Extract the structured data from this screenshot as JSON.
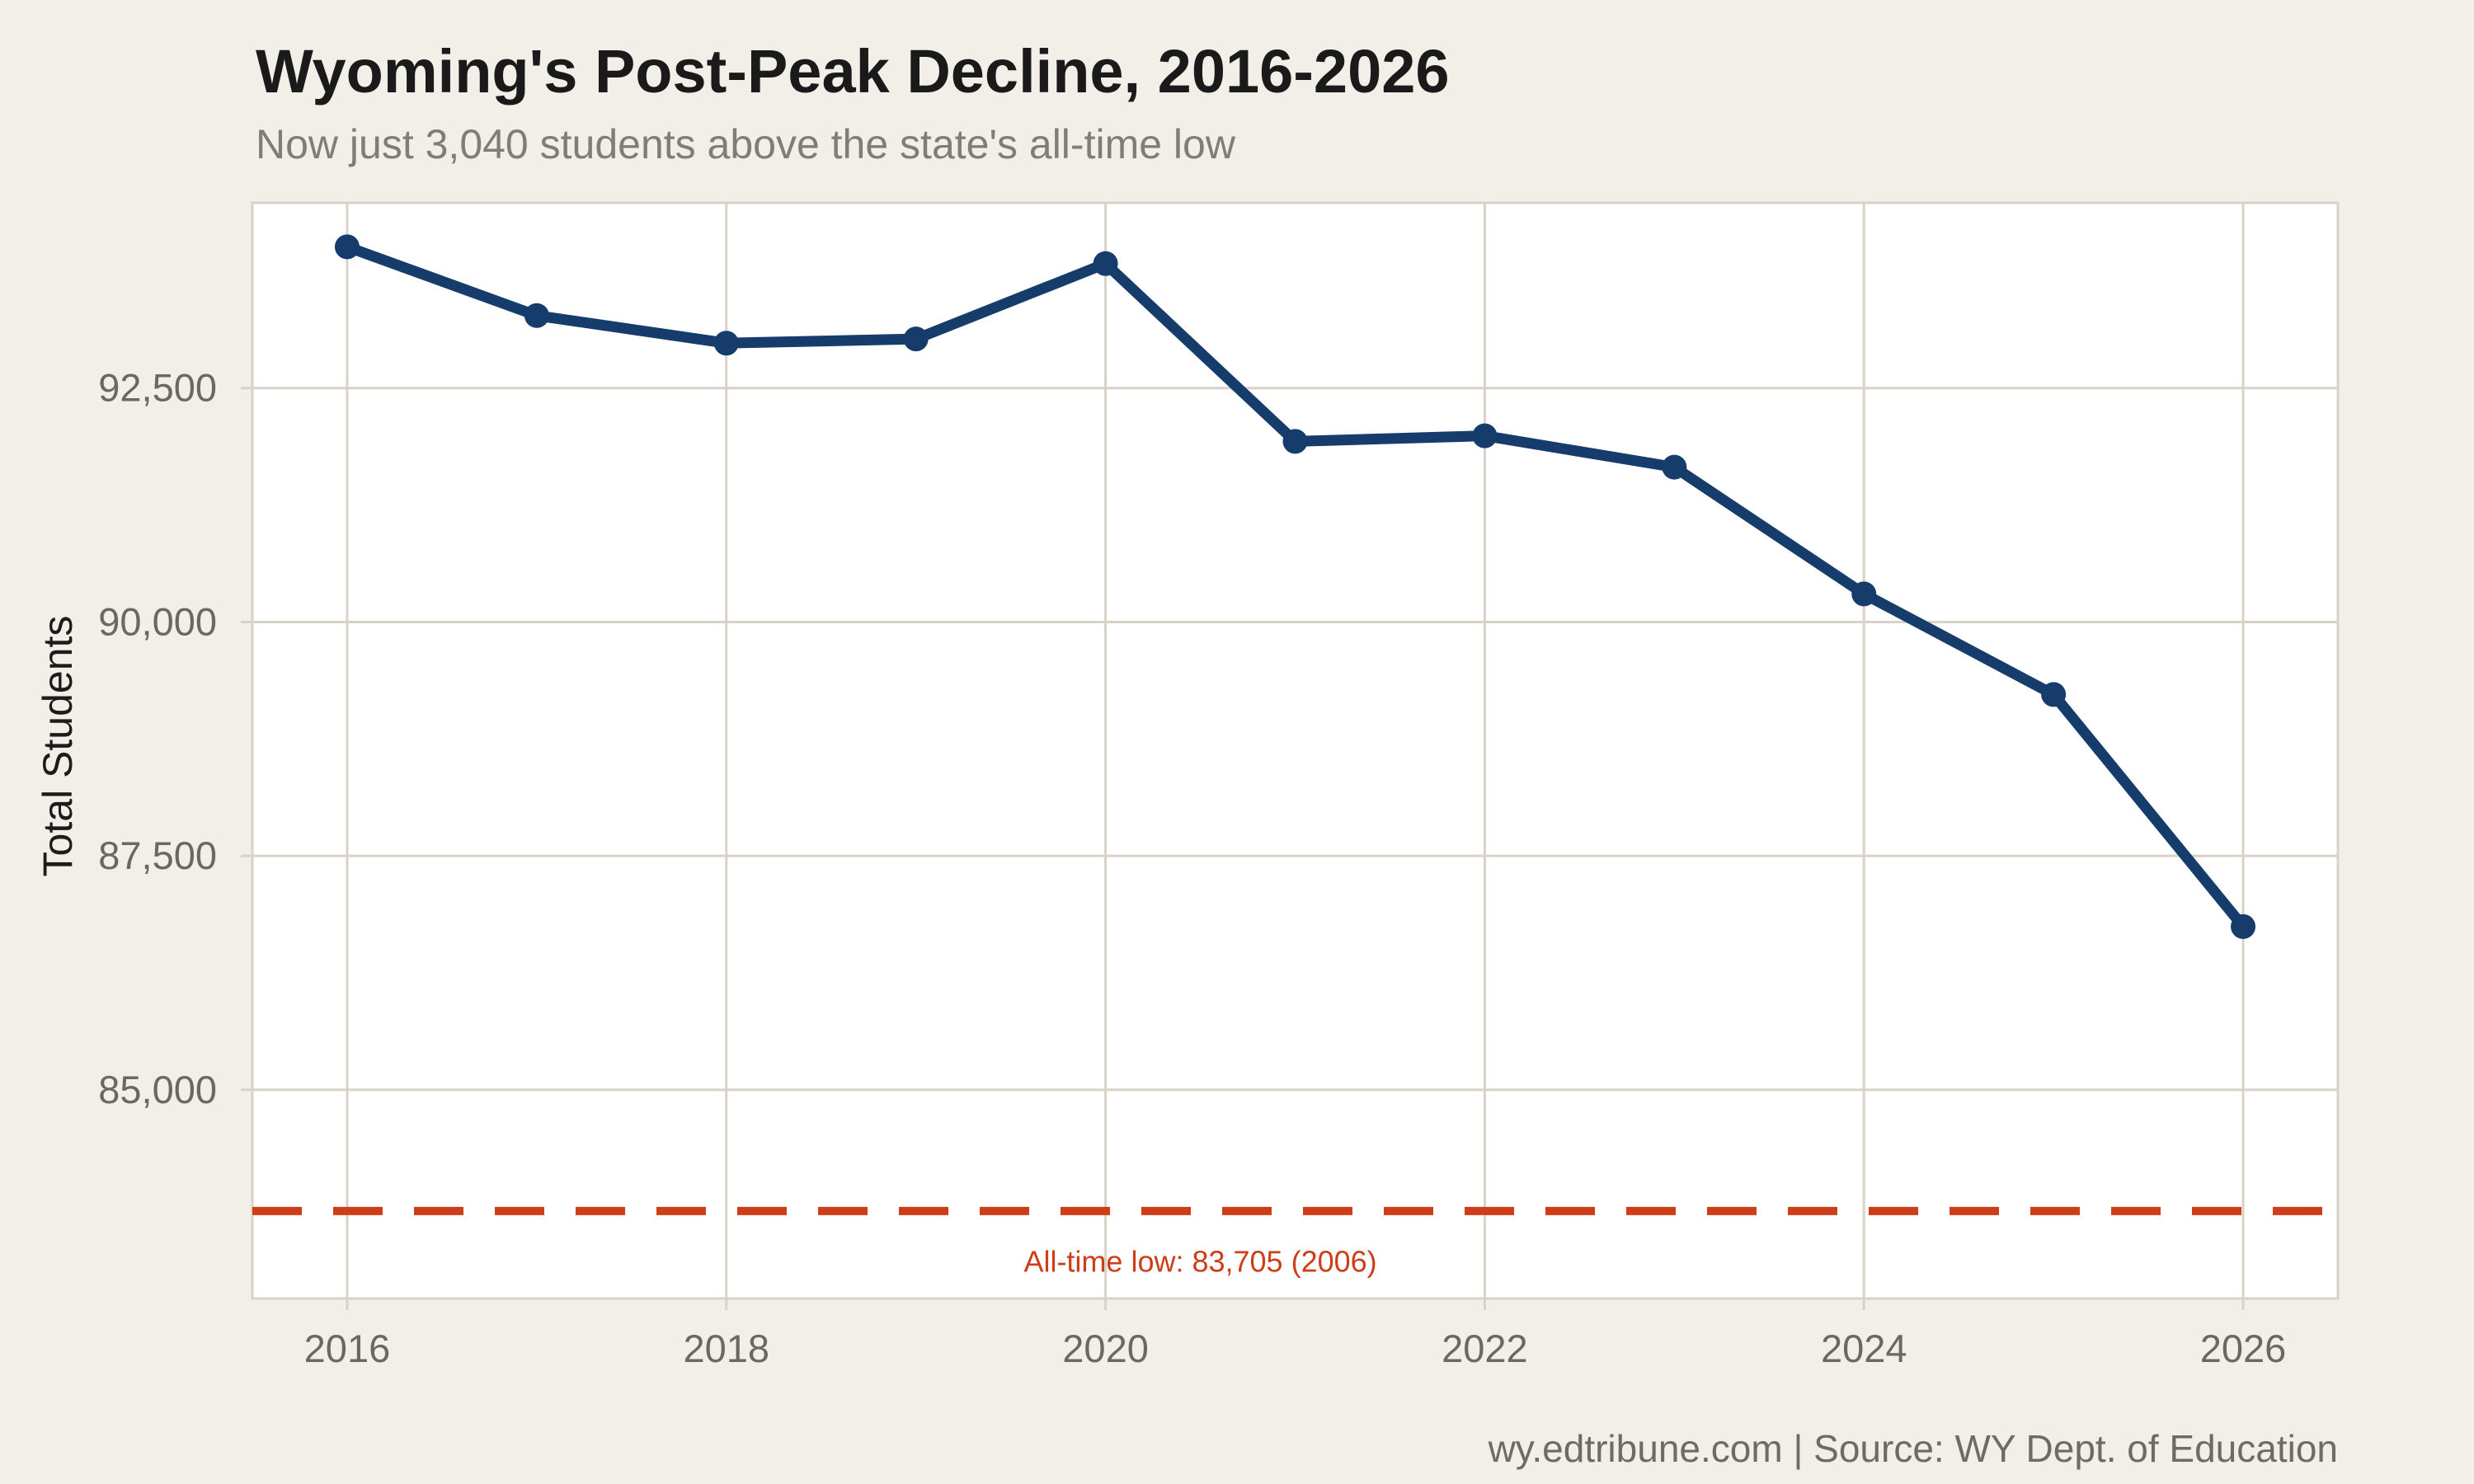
{
  "header": {
    "title": "Wyoming's Post-Peak Decline, 2016-2026",
    "subtitle": "Now just 3,040 students above the state's all-time low"
  },
  "footer": {
    "credit": "wy.edtribune.com | Source: WY Dept. of Education"
  },
  "colors": {
    "background": "#f2efe9",
    "panel": "#ffffff",
    "grid": "#d8d2c8",
    "line": "#153c6b",
    "reference": "#cd3d18",
    "tick_text": "#6c6761",
    "title_text": "#1a1a1a",
    "subtitle_text": "#7d7d79",
    "footer_text": "#6e6a64"
  },
  "chart_data": {
    "type": "line",
    "title": "Wyoming's Post-Peak Decline, 2016-2026",
    "subtitle": "Now just 3,040 students above the state's all-time low",
    "xlabel": "",
    "ylabel": "Total Students",
    "x": [
      2016,
      2017,
      2018,
      2019,
      2020,
      2021,
      2022,
      2023,
      2024,
      2025,
      2026
    ],
    "series": [
      {
        "name": "Total Students",
        "values": [
          94010,
          93275,
          92980,
          93025,
          93830,
          91930,
          91990,
          91655,
          90300,
          89225,
          86745
        ]
      }
    ],
    "xlim": [
      2015.5,
      2026.5
    ],
    "ylim": [
      82770,
      94480
    ],
    "grid": true,
    "legend": "none",
    "xticks": [
      {
        "value": 2016,
        "label": "2016"
      },
      {
        "value": 2018,
        "label": "2018"
      },
      {
        "value": 2020,
        "label": "2020"
      },
      {
        "value": 2022,
        "label": "2022"
      },
      {
        "value": 2024,
        "label": "2024"
      },
      {
        "value": 2026,
        "label": "2026"
      }
    ],
    "yticks": [
      {
        "value": 85000,
        "label": "85,000"
      },
      {
        "value": 87500,
        "label": "87,500"
      },
      {
        "value": 90000,
        "label": "90,000"
      },
      {
        "value": 92500,
        "label": "92,500"
      }
    ],
    "reference_line": {
      "value": 83705,
      "style": "dashed",
      "label": "All-time low: 83,705 (2006)",
      "label_x": 2020.5,
      "label_y": 83160
    }
  }
}
